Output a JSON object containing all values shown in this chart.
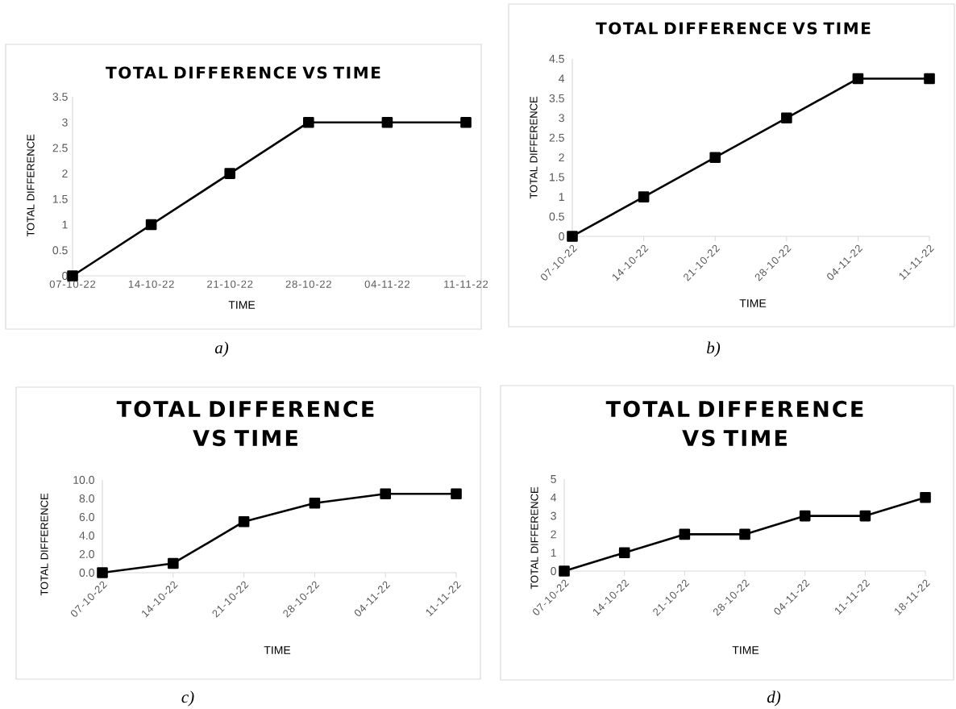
{
  "chart_data": [
    {
      "type": "line",
      "title": "TOTAL DIFFERENCE VS TIME",
      "xlabel": "TIME",
      "ylabel": "TOTAL DIFFERENCE",
      "categories": [
        "07-10-22",
        "14-10-22",
        "21-10-22",
        "28-10-22",
        "04-11-22",
        "11-11-22"
      ],
      "values": [
        0,
        1,
        2,
        3,
        3,
        3
      ],
      "color": "#000000",
      "ylim": [
        0,
        3.5
      ],
      "yticks": [
        0,
        0.5,
        1,
        1.5,
        2,
        2.5,
        3,
        3.5
      ],
      "marker": "square",
      "line_style": "solid",
      "annotations": [
        "a)"
      ]
    },
    {
      "type": "line",
      "title": "TOTAL DIFFERENCE VS TIME",
      "xlabel": "TIME",
      "ylabel": "TOTAL DIFFERENCE",
      "categories": [
        "07-10-22",
        "14-10-22",
        "21-10-22",
        "28-10-22",
        "04-11-22",
        "11-11-22"
      ],
      "values": [
        0,
        1,
        2,
        3,
        4,
        4
      ],
      "color": "#000000",
      "ylim": [
        0,
        4.5
      ],
      "yticks": [
        0,
        0.5,
        1,
        1.5,
        2,
        2.5,
        3,
        3.5,
        4,
        4.5
      ],
      "marker": "square",
      "line_style": "solid",
      "annotations": [
        "b)"
      ]
    },
    {
      "type": "line",
      "title": "TOTAL DIFFERENCE VS TIME",
      "xlabel": "TIME",
      "ylabel": "TOTAL DIFFERENCE",
      "categories": [
        "07-10-22",
        "14-10-22",
        "21-10-22",
        "28-10-22",
        "04-11-22",
        "11-11-22"
      ],
      "values": [
        0,
        1,
        5.5,
        7.5,
        8.5,
        8.5
      ],
      "color": "#000000",
      "ylim": [
        0,
        10
      ],
      "yticks": [
        {
          "value": 0,
          "label": "0.0"
        },
        {
          "value": 2,
          "label": "2.0"
        },
        {
          "value": 4,
          "label": "4.0"
        },
        {
          "value": 6,
          "label": "6.0"
        },
        {
          "value": 8,
          "label": "8.0"
        },
        {
          "value": 10,
          "label": "10.0"
        }
      ],
      "marker": "square",
      "line_style": "solid",
      "annotations": [
        "c)"
      ]
    },
    {
      "type": "line",
      "title": "TOTAL DIFFERENCE VS TIME",
      "xlabel": "TIME",
      "ylabel": "TOTAL DIFFERENCE",
      "categories": [
        "07-10-22",
        "14-10-22",
        "21-10-22",
        "28-10-22",
        "04-11-22",
        "11-11-22",
        "18-11-22"
      ],
      "values": [
        0,
        1,
        2,
        2,
        3,
        3,
        4
      ],
      "color": "#000000",
      "ylim": [
        0,
        5
      ],
      "yticks": [
        0,
        1,
        2,
        3,
        4,
        5
      ],
      "marker": "square",
      "line_style": "solid",
      "annotations": [
        "d)"
      ]
    }
  ]
}
